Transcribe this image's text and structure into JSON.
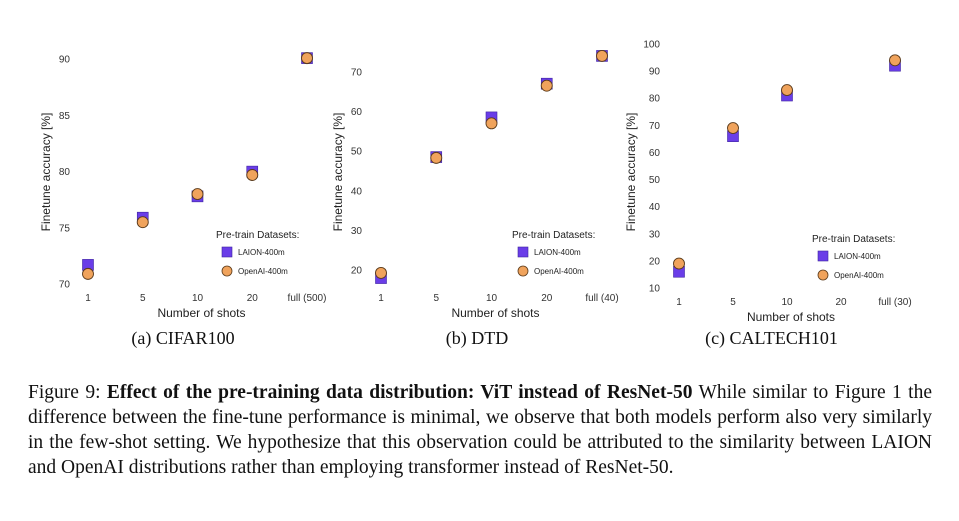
{
  "colors": {
    "laion": "#6a3de8",
    "laion_edge": "#3f25a0",
    "openai": "#f0a35c",
    "openai_edge": "#5a3a1a"
  },
  "subcaptions": [
    "(a) CIFAR100",
    "(b) DTD",
    "(c) CALTECH101"
  ],
  "caption": {
    "prefix": "Figure 9: ",
    "bold": "Effect of the pre-training data distribution: ViT instead of ResNet-50",
    "rest": " While similar to Figure 1 the difference between the fine-tune performance is minimal, we observe that both models perform also very similarly in the few-shot setting. We hypothesize that this observation could be attributed to the similarity between LAION and OpenAI distributions rather than employing transformer instead of ResNet-50."
  },
  "chart_data": [
    {
      "type": "scatter",
      "xlabel": "Number of shots",
      "ylabel": "Finetune accuracy [%]",
      "categories": [
        "1",
        "5",
        "10",
        "20",
        "full (500)"
      ],
      "ylim": [
        70,
        91
      ],
      "yticks": [
        70,
        75,
        80,
        85,
        90
      ],
      "legend_title": "Pre-train Datasets:",
      "legend_position": "bottom-right",
      "series": [
        {
          "name": "LAION-400m",
          "marker": "square",
          "values": [
            71.7,
            75.9,
            77.8,
            80.0,
            90.1
          ]
        },
        {
          "name": "OpenAI-400m",
          "marker": "circle",
          "values": [
            70.9,
            75.5,
            78.0,
            79.7,
            90.1
          ]
        }
      ]
    },
    {
      "type": "scatter",
      "xlabel": "Number of shots",
      "ylabel": "Finetune accuracy [%]",
      "categories": [
        "1",
        "5",
        "10",
        "20",
        "full (40)"
      ],
      "ylim": [
        16.5,
        76
      ],
      "yticks": [
        20,
        30,
        40,
        50,
        60,
        70
      ],
      "legend_title": "Pre-train Datasets:",
      "legend_position": "bottom-right",
      "series": [
        {
          "name": "LAION-400m",
          "marker": "square",
          "values": [
            18.0,
            48.5,
            58.5,
            67.0,
            74.0
          ]
        },
        {
          "name": "OpenAI-400m",
          "marker": "circle",
          "values": [
            19.3,
            48.3,
            57.0,
            66.5,
            74.0
          ]
        }
      ]
    },
    {
      "type": "scatter",
      "xlabel": "Number of shots",
      "ylabel": "Finetune accuracy [%]",
      "categories": [
        "1",
        "5",
        "10",
        "20",
        "full (30)"
      ],
      "ylim": [
        10,
        100
      ],
      "yticks": [
        10,
        20,
        30,
        40,
        50,
        60,
        70,
        80,
        90,
        100
      ],
      "legend_title": "Pre-train Datasets:",
      "legend_position": "bottom-right",
      "series": [
        {
          "name": "LAION-400m",
          "marker": "square",
          "values": [
            16.0,
            66.0,
            81.0,
            null,
            92.0
          ]
        },
        {
          "name": "OpenAI-400m",
          "marker": "circle",
          "values": [
            19.0,
            69.0,
            83.0,
            null,
            94.0
          ]
        }
      ]
    }
  ]
}
